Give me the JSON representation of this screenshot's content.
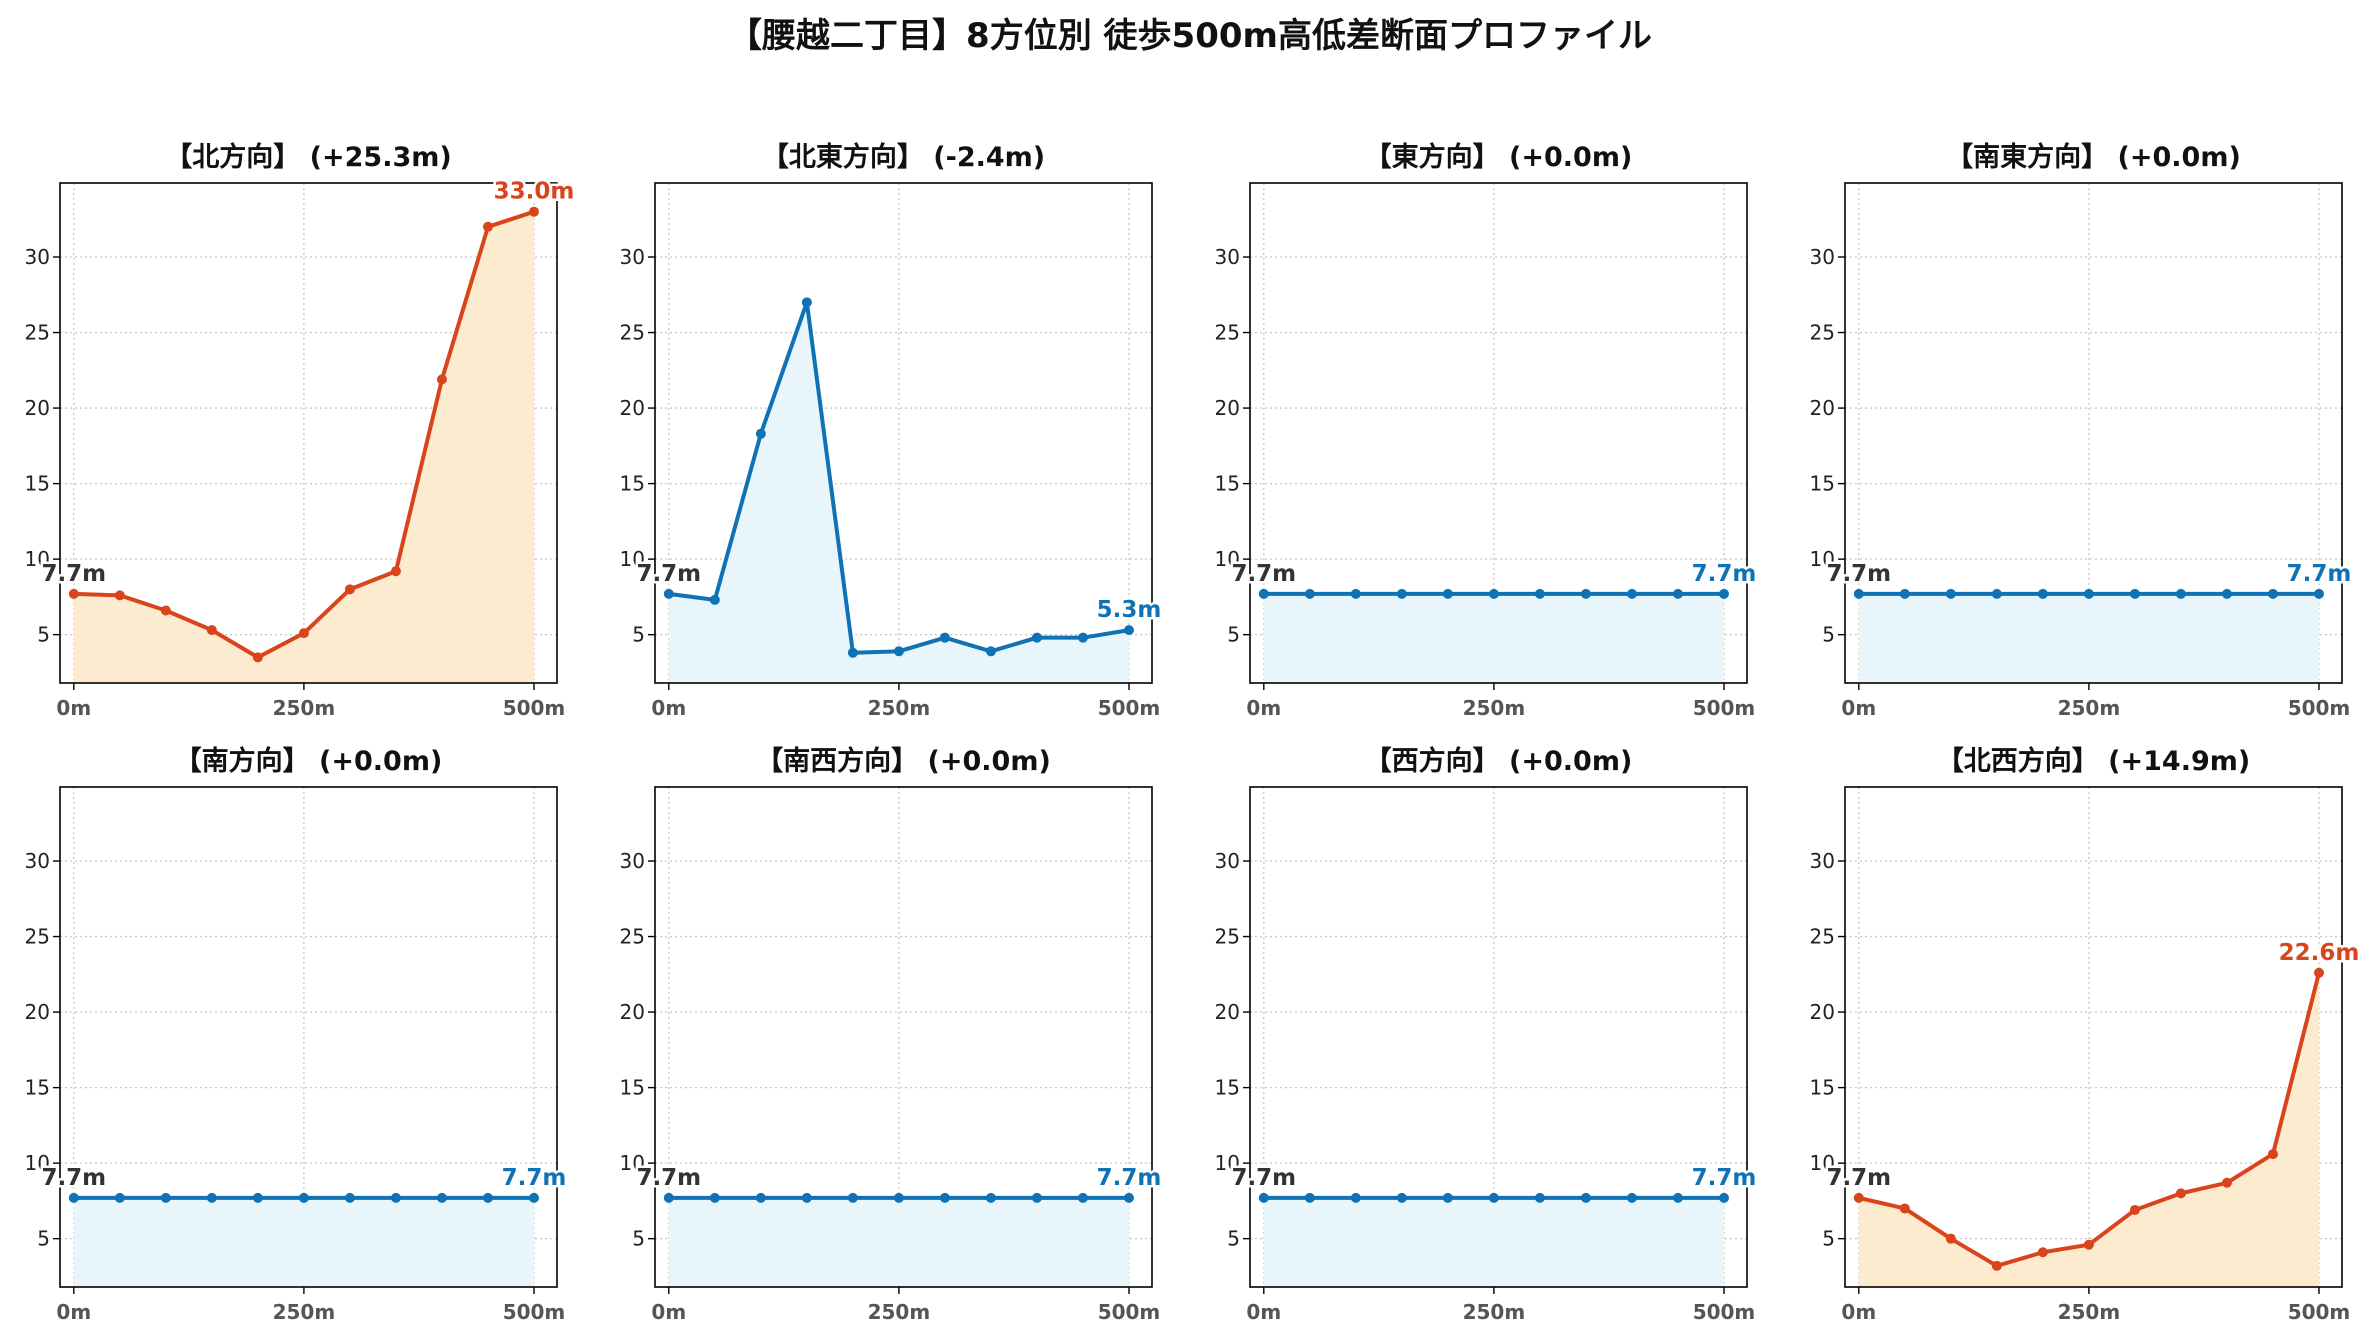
{
  "suptitle": "【腰越二丁目】8方位別 徒歩500m高低差断面プロファイル",
  "colors": {
    "up": "#d9441c",
    "down": "#0e72b5",
    "fill_up": "#fdebd0",
    "fill_down": "#e8f6fb"
  },
  "chart_data": [
    {
      "type": "area",
      "title": "【北方向】 (+25.3m)",
      "trend": "up",
      "x": [
        0,
        50,
        100,
        150,
        200,
        250,
        300,
        350,
        400,
        450,
        500
      ],
      "y": [
        7.7,
        7.6,
        6.6,
        5.3,
        3.5,
        5.1,
        8.0,
        9.2,
        21.9,
        32.0,
        33.0
      ],
      "start_label": "7.7m",
      "end_label": "33.0m",
      "xticks": [
        "0m",
        "250m",
        "500m"
      ],
      "ylim": [
        1.8,
        34.9
      ],
      "yticks": [
        5,
        10,
        15,
        20,
        25,
        30
      ],
      "grid": true
    },
    {
      "type": "area",
      "title": "【北東方向】 (-2.4m)",
      "trend": "down",
      "x": [
        0,
        50,
        100,
        150,
        200,
        250,
        300,
        350,
        400,
        450,
        500
      ],
      "y": [
        7.7,
        7.3,
        18.3,
        27.0,
        3.8,
        3.9,
        4.8,
        3.9,
        4.8,
        4.8,
        5.3
      ],
      "start_label": "7.7m",
      "end_label": "5.3m",
      "xticks": [
        "0m",
        "250m",
        "500m"
      ],
      "ylim": [
        1.8,
        34.9
      ],
      "yticks": [
        5,
        10,
        15,
        20,
        25,
        30
      ],
      "grid": true
    },
    {
      "type": "area",
      "title": "【東方向】 (+0.0m)",
      "trend": "down",
      "x": [
        0,
        50,
        100,
        150,
        200,
        250,
        300,
        350,
        400,
        450,
        500
      ],
      "y": [
        7.7,
        7.7,
        7.7,
        7.7,
        7.7,
        7.7,
        7.7,
        7.7,
        7.7,
        7.7,
        7.7
      ],
      "start_label": "7.7m",
      "end_label": "7.7m",
      "xticks": [
        "0m",
        "250m",
        "500m"
      ],
      "ylim": [
        1.8,
        34.9
      ],
      "yticks": [
        5,
        10,
        15,
        20,
        25,
        30
      ],
      "grid": true
    },
    {
      "type": "area",
      "title": "【南東方向】 (+0.0m)",
      "trend": "down",
      "x": [
        0,
        50,
        100,
        150,
        200,
        250,
        300,
        350,
        400,
        450,
        500
      ],
      "y": [
        7.7,
        7.7,
        7.7,
        7.7,
        7.7,
        7.7,
        7.7,
        7.7,
        7.7,
        7.7,
        7.7
      ],
      "start_label": "7.7m",
      "end_label": "7.7m",
      "xticks": [
        "0m",
        "250m",
        "500m"
      ],
      "ylim": [
        1.8,
        34.9
      ],
      "yticks": [
        5,
        10,
        15,
        20,
        25,
        30
      ],
      "grid": true
    },
    {
      "type": "area",
      "title": "【南方向】 (+0.0m)",
      "trend": "down",
      "x": [
        0,
        50,
        100,
        150,
        200,
        250,
        300,
        350,
        400,
        450,
        500
      ],
      "y": [
        7.7,
        7.7,
        7.7,
        7.7,
        7.7,
        7.7,
        7.7,
        7.7,
        7.7,
        7.7,
        7.7
      ],
      "start_label": "7.7m",
      "end_label": "7.7m",
      "xticks": [
        "0m",
        "250m",
        "500m"
      ],
      "ylim": [
        1.8,
        34.9
      ],
      "yticks": [
        5,
        10,
        15,
        20,
        25,
        30
      ],
      "grid": true
    },
    {
      "type": "area",
      "title": "【南西方向】 (+0.0m)",
      "trend": "down",
      "x": [
        0,
        50,
        100,
        150,
        200,
        250,
        300,
        350,
        400,
        450,
        500
      ],
      "y": [
        7.7,
        7.7,
        7.7,
        7.7,
        7.7,
        7.7,
        7.7,
        7.7,
        7.7,
        7.7,
        7.7
      ],
      "start_label": "7.7m",
      "end_label": "7.7m",
      "xticks": [
        "0m",
        "250m",
        "500m"
      ],
      "ylim": [
        1.8,
        34.9
      ],
      "yticks": [
        5,
        10,
        15,
        20,
        25,
        30
      ],
      "grid": true
    },
    {
      "type": "area",
      "title": "【西方向】 (+0.0m)",
      "trend": "down",
      "x": [
        0,
        50,
        100,
        150,
        200,
        250,
        300,
        350,
        400,
        450,
        500
      ],
      "y": [
        7.7,
        7.7,
        7.7,
        7.7,
        7.7,
        7.7,
        7.7,
        7.7,
        7.7,
        7.7,
        7.7
      ],
      "start_label": "7.7m",
      "end_label": "7.7m",
      "xticks": [
        "0m",
        "250m",
        "500m"
      ],
      "ylim": [
        1.8,
        34.9
      ],
      "yticks": [
        5,
        10,
        15,
        20,
        25,
        30
      ],
      "grid": true
    },
    {
      "type": "area",
      "title": "【北西方向】 (+14.9m)",
      "trend": "up",
      "x": [
        0,
        50,
        100,
        150,
        200,
        250,
        300,
        350,
        400,
        450,
        500
      ],
      "y": [
        7.7,
        7.0,
        5.0,
        3.2,
        4.1,
        4.6,
        6.9,
        8.0,
        8.7,
        10.6,
        22.6
      ],
      "start_label": "7.7m",
      "end_label": "22.6m",
      "xticks": [
        "0m",
        "250m",
        "500m"
      ],
      "ylim": [
        1.8,
        34.9
      ],
      "yticks": [
        5,
        10,
        15,
        20,
        25,
        30
      ],
      "grid": true
    }
  ]
}
